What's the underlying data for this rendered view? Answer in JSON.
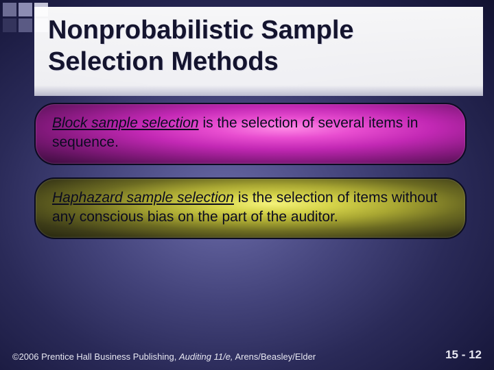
{
  "title": "Nonprobabilistic Sample Selection Methods",
  "cards": [
    {
      "term": "Block sample selection",
      "rest": " is the selection of several items in sequence.",
      "variant": "magenta"
    },
    {
      "term": "Haphazard sample selection",
      "rest": " is the selection of items without any conscious bias on the part of the auditor.",
      "variant": "olive"
    }
  ],
  "footer": {
    "copyright_prefix": "©2006 Prentice Hall Business Publishing, ",
    "book": "Auditing 11/e,",
    "authors": " Arens/Beasley/Elder",
    "page": "15 - 12"
  },
  "colors": {
    "title_text": "#14142e",
    "body_text": "#0b0b20",
    "footer_text": "#e8e8f2"
  }
}
